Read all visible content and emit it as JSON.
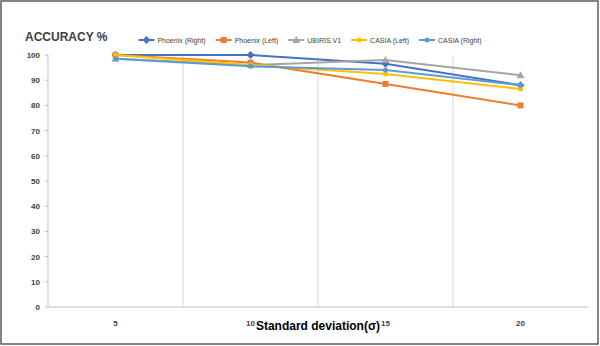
{
  "chart_data": {
    "type": "line",
    "title": "ACCURACY %",
    "x_label": "Standard deviation(σ)",
    "categories": [
      "5",
      "10",
      "15",
      "20"
    ],
    "series": [
      {
        "name": "Phoenix (Right)",
        "color": "#4472c4",
        "marker": "diamond",
        "values": [
          100,
          100,
          96.5,
          88
        ]
      },
      {
        "name": "Phoenix (Left)",
        "color": "#ed7d31",
        "marker": "square",
        "values": [
          100,
          97,
          88.5,
          80
        ]
      },
      {
        "name": "UBIRIS.V1",
        "color": "#a5a5a5",
        "marker": "triangle",
        "values": [
          98.5,
          96,
          98,
          92
        ]
      },
      {
        "name": "CASIA (Left)",
        "color": "#ffc000",
        "marker": "circle",
        "values": [
          100,
          96,
          92.5,
          86.5
        ]
      },
      {
        "name": "CASIA (Right)",
        "color": "#5b9bd5",
        "marker": "circle",
        "values": [
          98.5,
          95.5,
          94,
          88
        ]
      }
    ],
    "ylim": [
      0,
      100
    ],
    "yticks": [
      0,
      10,
      20,
      30,
      40,
      50,
      60,
      70,
      80,
      90,
      100
    ],
    "grid": true,
    "legend": "top"
  }
}
